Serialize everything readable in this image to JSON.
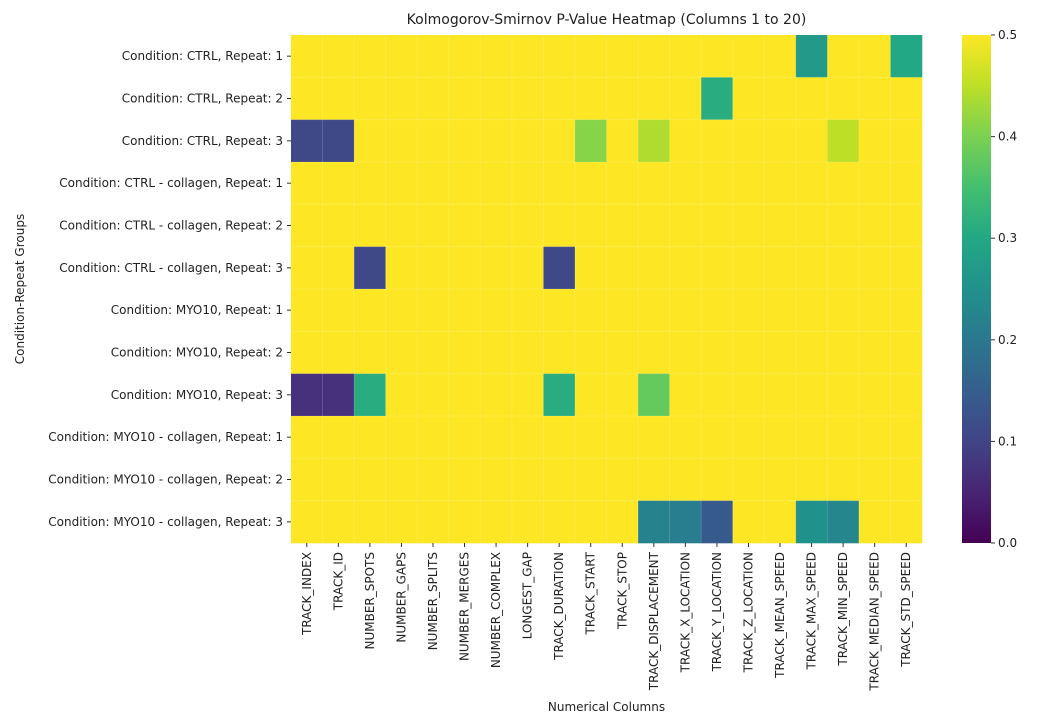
{
  "chart_data": {
    "type": "heatmap",
    "title": "Kolmogorov-Smirnov P-Value Heatmap (Columns 1 to 20)",
    "xlabel": "Numerical Columns",
    "ylabel": "Condition-Repeat Groups",
    "columns": [
      "TRACK_INDEX",
      "TRACK_ID",
      "NUMBER_SPOTS",
      "NUMBER_GAPS",
      "NUMBER_SPLITS",
      "NUMBER_MERGES",
      "NUMBER_COMPLEX",
      "LONGEST_GAP",
      "TRACK_DURATION",
      "TRACK_START",
      "TRACK_STOP",
      "TRACK_DISPLACEMENT",
      "TRACK_X_LOCATION",
      "TRACK_Y_LOCATION",
      "TRACK_Z_LOCATION",
      "TRACK_MEAN_SPEED",
      "TRACK_MAX_SPEED",
      "TRACK_MIN_SPEED",
      "TRACK_MEDIAN_SPEED",
      "TRACK_STD_SPEED"
    ],
    "rows": [
      "Condition: CTRL, Repeat: 1",
      "Condition: CTRL, Repeat: 2",
      "Condition: CTRL, Repeat: 3",
      "Condition: CTRL - collagen, Repeat: 1",
      "Condition: CTRL - collagen, Repeat: 2",
      "Condition: CTRL - collagen, Repeat: 3",
      "Condition: MYO10, Repeat: 1",
      "Condition: MYO10, Repeat: 2",
      "Condition: MYO10, Repeat: 3",
      "Condition: MYO10  - collagen, Repeat: 1",
      "Condition: MYO10  - collagen, Repeat: 2",
      "Condition: MYO10  - collagen, Repeat: 3"
    ],
    "values": [
      [
        0.5,
        0.5,
        0.5,
        0.5,
        0.5,
        0.5,
        0.5,
        0.5,
        0.5,
        0.5,
        0.5,
        0.5,
        0.5,
        0.5,
        0.5,
        0.5,
        0.27,
        0.5,
        0.5,
        0.3
      ],
      [
        0.5,
        0.5,
        0.5,
        0.5,
        0.5,
        0.5,
        0.5,
        0.5,
        0.5,
        0.5,
        0.5,
        0.5,
        0.5,
        0.31,
        0.5,
        0.5,
        0.5,
        0.5,
        0.5,
        0.5
      ],
      [
        0.11,
        0.11,
        0.5,
        0.5,
        0.5,
        0.5,
        0.5,
        0.5,
        0.5,
        0.41,
        0.5,
        0.44,
        0.5,
        0.5,
        0.5,
        0.5,
        0.5,
        0.45,
        0.5,
        0.5
      ],
      [
        0.5,
        0.5,
        0.5,
        0.5,
        0.5,
        0.5,
        0.5,
        0.5,
        0.5,
        0.5,
        0.5,
        0.5,
        0.5,
        0.5,
        0.5,
        0.5,
        0.5,
        0.5,
        0.5,
        0.5
      ],
      [
        0.5,
        0.5,
        0.5,
        0.5,
        0.5,
        0.5,
        0.5,
        0.5,
        0.5,
        0.5,
        0.5,
        0.5,
        0.5,
        0.5,
        0.5,
        0.5,
        0.5,
        0.5,
        0.5,
        0.5
      ],
      [
        0.5,
        0.5,
        0.11,
        0.5,
        0.5,
        0.5,
        0.5,
        0.5,
        0.11,
        0.5,
        0.5,
        0.5,
        0.5,
        0.5,
        0.5,
        0.5,
        0.5,
        0.5,
        0.5,
        0.5
      ],
      [
        0.5,
        0.5,
        0.5,
        0.5,
        0.5,
        0.5,
        0.5,
        0.5,
        0.5,
        0.5,
        0.5,
        0.5,
        0.5,
        0.5,
        0.5,
        0.5,
        0.5,
        0.5,
        0.5,
        0.5
      ],
      [
        0.5,
        0.5,
        0.5,
        0.5,
        0.5,
        0.5,
        0.5,
        0.5,
        0.5,
        0.5,
        0.5,
        0.5,
        0.5,
        0.5,
        0.5,
        0.5,
        0.5,
        0.5,
        0.5,
        0.5
      ],
      [
        0.07,
        0.07,
        0.31,
        0.5,
        0.5,
        0.5,
        0.5,
        0.5,
        0.31,
        0.5,
        0.5,
        0.38,
        0.5,
        0.5,
        0.5,
        0.5,
        0.5,
        0.5,
        0.5,
        0.5
      ],
      [
        0.5,
        0.5,
        0.5,
        0.5,
        0.5,
        0.5,
        0.5,
        0.5,
        0.5,
        0.5,
        0.5,
        0.5,
        0.5,
        0.5,
        0.5,
        0.5,
        0.5,
        0.5,
        0.5,
        0.5
      ],
      [
        0.5,
        0.5,
        0.5,
        0.5,
        0.5,
        0.5,
        0.5,
        0.5,
        0.5,
        0.5,
        0.5,
        0.5,
        0.5,
        0.5,
        0.5,
        0.5,
        0.5,
        0.5,
        0.5,
        0.5
      ],
      [
        0.5,
        0.5,
        0.5,
        0.5,
        0.5,
        0.5,
        0.5,
        0.5,
        0.5,
        0.5,
        0.5,
        0.22,
        0.21,
        0.14,
        0.5,
        0.5,
        0.25,
        0.23,
        0.5,
        0.5
      ]
    ],
    "colorbar": {
      "colormap": "viridis",
      "range": [
        0.0,
        0.5
      ],
      "ticks": [
        0.0,
        0.1,
        0.2,
        0.3,
        0.4,
        0.5
      ],
      "tick_labels": [
        "0.0",
        "0.1",
        "0.2",
        "0.3",
        "0.4",
        "0.5"
      ]
    }
  }
}
